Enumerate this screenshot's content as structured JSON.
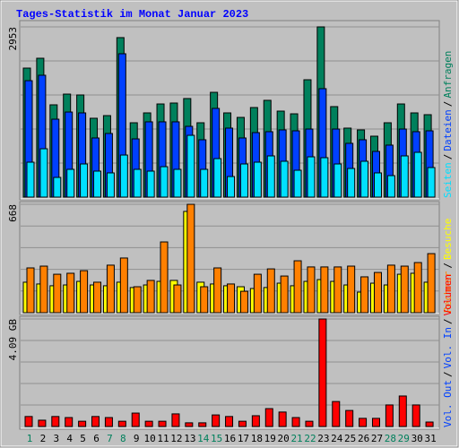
{
  "chart_data": [
    {
      "type": "bar",
      "title": "Tages-Statistik im Monat Januar 2023",
      "legend_separator": "/",
      "ylim": [
        0,
        2953
      ],
      "yticks": [
        2953
      ],
      "series": [
        {
          "name": "Anfragen",
          "color": "#00805c",
          "values": [
            2238,
            2409,
            1601,
            1787,
            1772,
            1368,
            1414,
            2767,
            1290,
            1461,
            1616,
            1632,
            1710,
            1290,
            1818,
            1461,
            1383,
            1554,
            1679,
            1492,
            1445,
            2036,
            2953,
            1570,
            1197,
            1166,
            1057,
            1290,
            1616,
            1461,
            1430
          ]
        },
        {
          "name": "Dateien",
          "color": "#0040ff",
          "values": [
            2020,
            2114,
            1352,
            1476,
            1461,
            1026,
            1104,
            2487,
            1010,
            1306,
            1306,
            1306,
            1228,
            995,
            1539,
            1197,
            1026,
            1119,
            1135,
            1166,
            1150,
            1181,
            1881,
            1181,
            933,
            995,
            793,
            902,
            1181,
            1135,
            1150
          ]
        },
        {
          "name": "Seiten",
          "color": "#00e0ff",
          "values": [
            606,
            839,
            342,
            482,
            575,
            451,
            420,
            730,
            482,
            451,
            528,
            482,
            1072,
            482,
            668,
            357,
            575,
            606,
            715,
            622,
            466,
            699,
            684,
            575,
            497,
            622,
            420,
            373,
            715,
            777,
            513
          ]
        }
      ]
    },
    {
      "type": "bar",
      "ylim": [
        0,
        668
      ],
      "yticks": [
        668
      ],
      "series": [
        {
          "name": "Besuche",
          "color": "#ffff00",
          "values": [
            188,
            177,
            166,
            171,
            193,
            171,
            166,
            188,
            155,
            171,
            193,
            199,
            624,
            188,
            177,
            166,
            160,
            149,
            155,
            182,
            166,
            193,
            204,
            193,
            171,
            127,
            182,
            171,
            237,
            243,
            188
          ]
        },
        {
          "name": "Rechner",
          "color": "#ff8000",
          "values": [
            276,
            287,
            237,
            243,
            259,
            188,
            293,
            337,
            160,
            199,
            436,
            171,
            668,
            160,
            276,
            177,
            132,
            237,
            270,
            226,
            320,
            282,
            282,
            282,
            287,
            221,
            248,
            293,
            287,
            309,
            364
          ]
        }
      ]
    },
    {
      "type": "bar",
      "ylim": [
        0,
        4.09
      ],
      "yticks": [
        {
          "value": 4.09,
          "label": "4.09 GB"
        }
      ],
      "categories": [
        "1",
        "2",
        "3",
        "4",
        "5",
        "6",
        "7",
        "8",
        "9",
        "10",
        "11",
        "12",
        "13",
        "14",
        "15",
        "16",
        "17",
        "18",
        "19",
        "20",
        "21",
        "22",
        "23",
        "24",
        "25",
        "26",
        "27",
        "28",
        "29",
        "30",
        "31"
      ],
      "category_colors": [
        "#00805c",
        "#000000",
        "#000000",
        "#000000",
        "#000000",
        "#000000",
        "#00805c",
        "#00805c",
        "#000000",
        "#000000",
        "#000000",
        "#000000",
        "#000000",
        "#00805c",
        "#00805c",
        "#000000",
        "#000000",
        "#000000",
        "#000000",
        "#000000",
        "#00805c",
        "#00805c",
        "#000000",
        "#000000",
        "#000000",
        "#000000",
        "#000000",
        "#00805c",
        "#00805c",
        "#000000",
        "#000000"
      ],
      "series": [
        {
          "name": "Volumen",
          "color": "#ff0000",
          "values": [
            0.38,
            0.24,
            0.38,
            0.34,
            0.2,
            0.38,
            0.34,
            0.2,
            0.51,
            0.2,
            0.2,
            0.48,
            0.14,
            0.14,
            0.44,
            0.38,
            0.2,
            0.41,
            0.68,
            0.55,
            0.34,
            0.2,
            4.09,
            0.95,
            0.61,
            0.31,
            0.31,
            0.82,
            1.16,
            0.82,
            0.17
          ]
        },
        {
          "name": "Vol. In",
          "color": "#0040ff"
        },
        {
          "name": "Vol. Out",
          "color": "#0040ff"
        }
      ]
    }
  ]
}
